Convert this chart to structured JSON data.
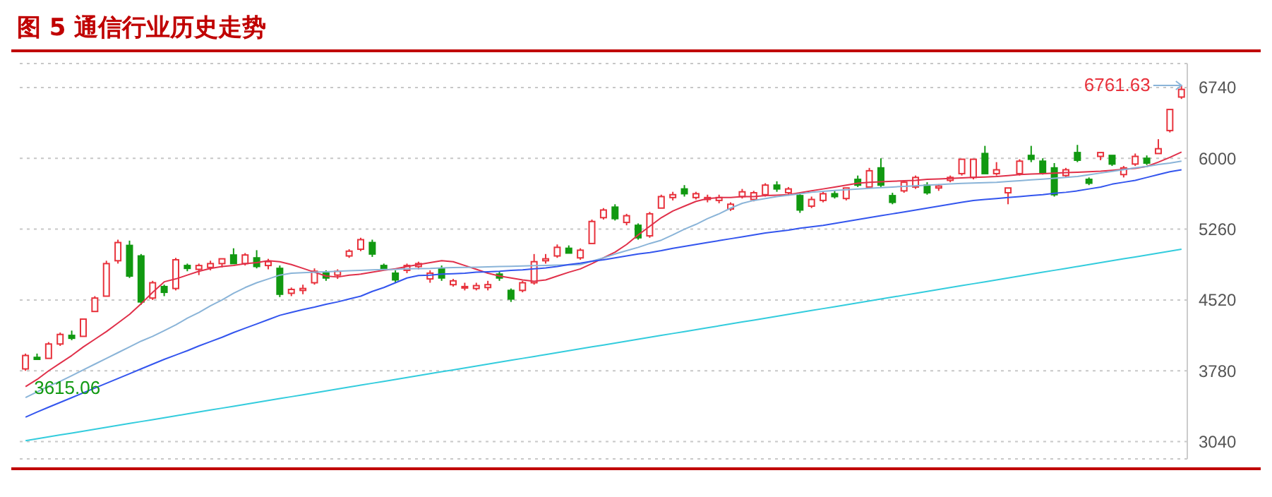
{
  "chart_data": {
    "type": "candlestick",
    "title": "图 5 通信行业历史走势",
    "categories": [
      null,
      null,
      null,
      null,
      null,
      null,
      null,
      null,
      null,
      null,
      null,
      null,
      null,
      null,
      null,
      null,
      null,
      null,
      null,
      null,
      null,
      null,
      null,
      null,
      null,
      null,
      null,
      null,
      null,
      null,
      null,
      null,
      null,
      null,
      null,
      null,
      null,
      null,
      null,
      null,
      null,
      null,
      null,
      null,
      null,
      null,
      null,
      null,
      null,
      null,
      null,
      null,
      null,
      null,
      null,
      null,
      null,
      null,
      null,
      null,
      null,
      null,
      null,
      null,
      null,
      null,
      null,
      null,
      null,
      null,
      null,
      null,
      null,
      null,
      null,
      null,
      null,
      null,
      null,
      null,
      null,
      null,
      null,
      null,
      null,
      null,
      null,
      null,
      null,
      null,
      null,
      null,
      null,
      null,
      null,
      null,
      null,
      null,
      null,
      null,
      null
    ],
    "ohlc": [
      [
        3800,
        3960,
        3780,
        3940
      ],
      [
        3920,
        3960,
        3890,
        3900
      ],
      [
        3910,
        4080,
        3900,
        4060
      ],
      [
        4060,
        4180,
        4040,
        4160
      ],
      [
        4150,
        4200,
        4100,
        4120
      ],
      [
        4140,
        4330,
        4130,
        4320
      ],
      [
        4400,
        4560,
        4390,
        4540
      ],
      [
        4560,
        4930,
        4550,
        4900
      ],
      [
        4930,
        5150,
        4900,
        5120
      ],
      [
        5090,
        5140,
        4750,
        4770
      ],
      [
        4980,
        5000,
        4470,
        4500
      ],
      [
        4540,
        4720,
        4520,
        4700
      ],
      [
        4660,
        4680,
        4560,
        4600
      ],
      [
        4640,
        4960,
        4620,
        4940
      ],
      [
        4880,
        4900,
        4820,
        4850
      ],
      [
        4840,
        4900,
        4780,
        4880
      ],
      [
        4860,
        4930,
        4830,
        4900
      ],
      [
        4900,
        4960,
        4860,
        4950
      ],
      [
        4990,
        5060,
        4890,
        4900
      ],
      [
        4900,
        5010,
        4880,
        4990
      ],
      [
        4960,
        5040,
        4850,
        4870
      ],
      [
        4880,
        4950,
        4840,
        4920
      ],
      [
        4850,
        4880,
        4550,
        4580
      ],
      [
        4590,
        4650,
        4560,
        4630
      ],
      [
        4620,
        4680,
        4580,
        4640
      ],
      [
        4700,
        4850,
        4680,
        4820
      ],
      [
        4800,
        4830,
        4720,
        4750
      ],
      [
        4780,
        4840,
        4740,
        4820
      ],
      [
        4980,
        5050,
        4960,
        5030
      ],
      [
        5050,
        5170,
        5030,
        5150
      ],
      [
        5120,
        5150,
        4970,
        5000
      ],
      [
        4880,
        4900,
        4830,
        4850
      ],
      [
        4800,
        4830,
        4700,
        4730
      ],
      [
        4830,
        4900,
        4800,
        4880
      ],
      [
        4870,
        4920,
        4840,
        4900
      ],
      [
        4740,
        4830,
        4700,
        4800
      ],
      [
        4850,
        4880,
        4720,
        4750
      ],
      [
        4680,
        4740,
        4660,
        4720
      ],
      [
        4650,
        4700,
        4620,
        4660
      ],
      [
        4640,
        4700,
        4620,
        4670
      ],
      [
        4650,
        4720,
        4620,
        4680
      ],
      [
        4790,
        4820,
        4720,
        4750
      ],
      [
        4620,
        4640,
        4500,
        4530
      ],
      [
        4620,
        4720,
        4600,
        4700
      ],
      [
        4700,
        5000,
        4680,
        4920
      ],
      [
        4930,
        5000,
        4900,
        4950
      ],
      [
        4980,
        5100,
        4960,
        5070
      ],
      [
        5060,
        5090,
        5000,
        5010
      ],
      [
        4960,
        5060,
        4940,
        5040
      ],
      [
        5110,
        5360,
        5100,
        5340
      ],
      [
        5380,
        5480,
        5360,
        5460
      ],
      [
        5490,
        5520,
        5350,
        5370
      ],
      [
        5330,
        5420,
        5300,
        5400
      ],
      [
        5300,
        5320,
        5150,
        5170
      ],
      [
        5190,
        5440,
        5170,
        5420
      ],
      [
        5480,
        5620,
        5470,
        5600
      ],
      [
        5590,
        5650,
        5560,
        5620
      ],
      [
        5680,
        5720,
        5600,
        5630
      ],
      [
        5590,
        5650,
        5570,
        5630
      ],
      [
        5570,
        5620,
        5540,
        5590
      ],
      [
        5560,
        5620,
        5530,
        5590
      ],
      [
        5470,
        5540,
        5450,
        5520
      ],
      [
        5600,
        5680,
        5580,
        5650
      ],
      [
        5570,
        5660,
        5550,
        5640
      ],
      [
        5620,
        5740,
        5600,
        5720
      ],
      [
        5720,
        5760,
        5650,
        5680
      ],
      [
        5640,
        5700,
        5610,
        5680
      ],
      [
        5610,
        5640,
        5430,
        5460
      ],
      [
        5500,
        5600,
        5480,
        5570
      ],
      [
        5560,
        5650,
        5540,
        5630
      ],
      [
        5630,
        5660,
        5580,
        5600
      ],
      [
        5580,
        5700,
        5560,
        5690
      ],
      [
        5780,
        5820,
        5700,
        5720
      ],
      [
        5700,
        5900,
        5690,
        5870
      ],
      [
        5900,
        6000,
        5700,
        5720
      ],
      [
        5610,
        5640,
        5520,
        5540
      ],
      [
        5660,
        5770,
        5640,
        5750
      ],
      [
        5700,
        5820,
        5680,
        5800
      ],
      [
        5720,
        5750,
        5620,
        5640
      ],
      [
        5690,
        5730,
        5660,
        5710
      ],
      [
        5770,
        5820,
        5750,
        5800
      ],
      [
        5840,
        6000,
        5820,
        5990
      ],
      [
        5800,
        6000,
        5780,
        5990
      ],
      [
        6050,
        6130,
        5830,
        5840
      ],
      [
        5840,
        5960,
        5820,
        5880
      ],
      [
        5640,
        5700,
        5520,
        5690
      ],
      [
        5840,
        5990,
        5820,
        5970
      ],
      [
        6030,
        6130,
        5960,
        5990
      ],
      [
        5970,
        6000,
        5830,
        5850
      ],
      [
        5900,
        5950,
        5600,
        5620
      ],
      [
        5820,
        5900,
        5800,
        5880
      ],
      [
        6060,
        6140,
        5960,
        5980
      ],
      [
        5780,
        5800,
        5720,
        5740
      ],
      [
        6020,
        6070,
        5980,
        6060
      ],
      [
        6030,
        6040,
        5920,
        5940
      ],
      [
        5830,
        5920,
        5800,
        5900
      ],
      [
        5940,
        6050,
        5920,
        6020
      ],
      [
        6000,
        6030,
        5930,
        5950
      ],
      [
        6050,
        6200,
        6040,
        6100
      ],
      [
        6290,
        6520,
        6270,
        6510
      ],
      [
        6640,
        6761.63,
        6620,
        6720
      ]
    ],
    "series": [
      {
        "type": "line",
        "color": "#e0304a",
        "values": [
          3615,
          3690,
          3780,
          3860,
          3940,
          4030,
          4110,
          4190,
          4280,
          4370,
          4480,
          4600,
          4710,
          4740,
          4780,
          4820,
          4850,
          4870,
          4880,
          4900,
          4910,
          4930,
          4920,
          4890,
          4850,
          4810,
          4770,
          4760,
          4780,
          4790,
          4810,
          4830,
          4845,
          4870,
          4890,
          4910,
          4930,
          4920,
          4880,
          4840,
          4800,
          4770,
          4750,
          4730,
          4715,
          4730,
          4770,
          4810,
          4845,
          4900,
          4960,
          5020,
          5100,
          5200,
          5290,
          5380,
          5450,
          5500,
          5550,
          5580,
          5590,
          5590,
          5600,
          5600,
          5610,
          5615,
          5620,
          5640,
          5660,
          5680,
          5700,
          5720,
          5740,
          5750,
          5755,
          5760,
          5765,
          5770,
          5780,
          5785,
          5790,
          5795,
          5800,
          5805,
          5810,
          5820,
          5830,
          5835,
          5840,
          5845,
          5850,
          5855,
          5860,
          5865,
          5875,
          5885,
          5895,
          5915,
          5960,
          6010,
          6065
        ]
      },
      {
        "type": "line",
        "color": "#8ab4d8",
        "values": [
          3500,
          3560,
          3620,
          3670,
          3730,
          3790,
          3850,
          3910,
          3970,
          4030,
          4090,
          4140,
          4200,
          4260,
          4330,
          4390,
          4460,
          4520,
          4590,
          4650,
          4700,
          4740,
          4780,
          4800,
          4805,
          4810,
          4815,
          4820,
          4825,
          4830,
          4835,
          4838,
          4840,
          4845,
          4848,
          4850,
          4855,
          4858,
          4860,
          4863,
          4866,
          4870,
          4872,
          4875,
          4878,
          4880,
          4884,
          4887,
          4890,
          4925,
          4960,
          5000,
          5035,
          5070,
          5110,
          5145,
          5200,
          5260,
          5310,
          5370,
          5420,
          5480,
          5530,
          5560,
          5580,
          5600,
          5615,
          5630,
          5645,
          5655,
          5665,
          5672,
          5680,
          5687,
          5694,
          5700,
          5707,
          5713,
          5720,
          5726,
          5732,
          5738,
          5742,
          5746,
          5750,
          5758,
          5766,
          5775,
          5783,
          5792,
          5800,
          5810,
          5828,
          5846,
          5864,
          5882,
          5900,
          5915,
          5935,
          5950,
          5970
        ]
      },
      {
        "type": "line",
        "color": "#3355ee",
        "values": [
          3296,
          3350,
          3400,
          3450,
          3500,
          3550,
          3600,
          3650,
          3700,
          3750,
          3800,
          3850,
          3900,
          3945,
          3990,
          4040,
          4085,
          4130,
          4180,
          4225,
          4270,
          4315,
          4360,
          4390,
          4420,
          4445,
          4475,
          4500,
          4530,
          4560,
          4610,
          4650,
          4700,
          4750,
          4775,
          4780,
          4790,
          4795,
          4800,
          4810,
          4815,
          4820,
          4830,
          4835,
          4845,
          4855,
          4870,
          4890,
          4905,
          4925,
          4940,
          4960,
          4980,
          5000,
          5015,
          5035,
          5060,
          5080,
          5100,
          5120,
          5140,
          5160,
          5180,
          5200,
          5220,
          5235,
          5250,
          5270,
          5285,
          5300,
          5320,
          5340,
          5360,
          5380,
          5400,
          5420,
          5440,
          5460,
          5480,
          5500,
          5520,
          5540,
          5560,
          5570,
          5580,
          5590,
          5600,
          5610,
          5620,
          5635,
          5645,
          5660,
          5680,
          5700,
          5730,
          5750,
          5770,
          5800,
          5830,
          5860,
          5880
        ]
      },
      {
        "type": "line",
        "color": "#33ccdd",
        "values": [
          3050,
          3070,
          3090,
          3110,
          3130,
          3150,
          3170,
          3190,
          3210,
          3230,
          3250,
          3270,
          3290,
          3310,
          3330,
          3350,
          3370,
          3390,
          3410,
          3430,
          3450,
          3470,
          3490,
          3510,
          3530,
          3550,
          3570,
          3590,
          3610,
          3630,
          3650,
          3670,
          3690,
          3710,
          3730,
          3750,
          3770,
          3790,
          3810,
          3830,
          3850,
          3870,
          3890,
          3910,
          3930,
          3950,
          3970,
          3990,
          4010,
          4030,
          4050,
          4070,
          4090,
          4110,
          4130,
          4150,
          4170,
          4190,
          4210,
          4230,
          4250,
          4270,
          4290,
          4310,
          4330,
          4350,
          4370,
          4390,
          4410,
          4430,
          4450,
          4470,
          4490,
          4510,
          4530,
          4550,
          4570,
          4590,
          4610,
          4630,
          4650,
          4670,
          4690,
          4710,
          4730,
          4750,
          4770,
          4790,
          4810,
          4830,
          4850,
          4870,
          4890,
          4910,
          4930,
          4950,
          4970,
          4990,
          5010,
          5030,
          5050
        ]
      }
    ],
    "ylim": [
      2860,
      6990
    ],
    "yticks": [
      3040,
      3780,
      4520,
      5260,
      6000,
      6740
    ],
    "grid": "y",
    "tick_labels": "y",
    "annotations": [
      "6761.63",
      "3615.06"
    ]
  }
}
